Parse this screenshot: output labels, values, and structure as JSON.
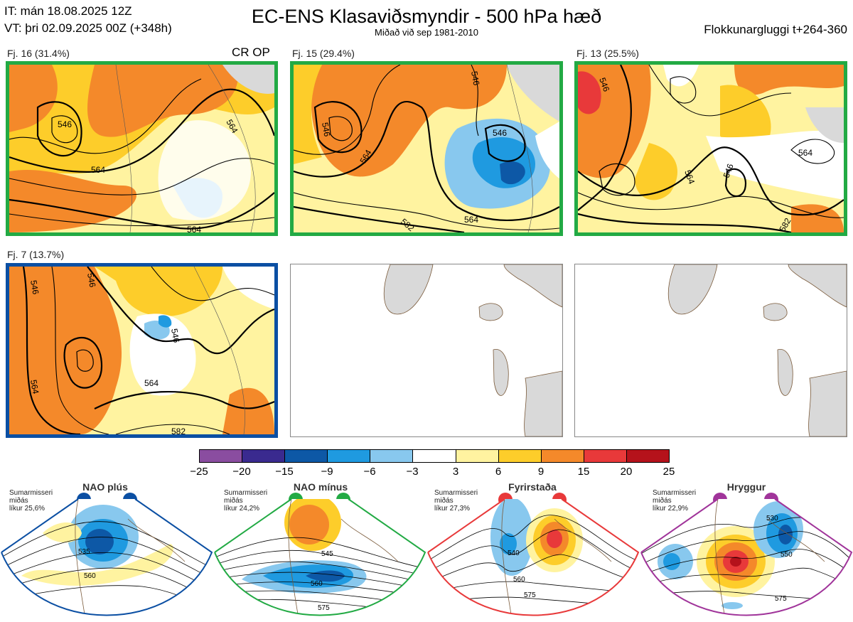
{
  "header": {
    "it_line": "IT: mán 18.08.2025 12Z",
    "vt_line": "VT: þri 02.09.2025 00Z  (+348h)",
    "title": "EC-ENS Klasaviðsmyndir - 500 hPa hæð",
    "subtitle": "Miðað við sep 1981-2010",
    "window": "Flokkunargluggi t+264-360"
  },
  "panels": [
    {
      "label": "Fj. 16 (31.4%)",
      "extra": "CR OP",
      "border": "#22aa44",
      "contours": [
        "546",
        "564",
        "564",
        "564"
      ]
    },
    {
      "label": "Fj. 15 (29.4%)",
      "border": "#22aa44",
      "contours": [
        "546",
        "546",
        "564",
        "546",
        "582",
        "564"
      ]
    },
    {
      "label": "Fj. 13 (25.5%)",
      "border": "#22aa44",
      "contours": [
        "546",
        "564",
        "546",
        "564",
        "582"
      ]
    },
    {
      "label": "Fj. 7 (13.7%)",
      "border": "#0b4fa3",
      "contours": [
        "546",
        "546",
        "546",
        "564",
        "564",
        "582"
      ]
    }
  ],
  "colorbar": {
    "ticks": [
      "−25",
      "−20",
      "−15",
      "−9",
      "−6",
      "−3",
      "3",
      "6",
      "9",
      "15",
      "20",
      "25"
    ],
    "colors": [
      "#8a4da0",
      "#3a2a8f",
      "#0d58a6",
      "#1f9ae0",
      "#88c8ee",
      "#ffffff",
      "#fff3a0",
      "#fdcd2a",
      "#f4892a",
      "#e8393a",
      "#b5121b"
    ]
  },
  "regimes": [
    {
      "name": "NAO plús",
      "season": "Sumarmisseri",
      "qual": "miðás",
      "prob": "líkur 25,6%",
      "color": "#0b4fa3",
      "contours": [
        "535",
        "560"
      ]
    },
    {
      "name": "NAO mínus",
      "season": "Sumarmisseri",
      "qual": "miðás",
      "prob": "líkur 24,2%",
      "color": "#22aa44",
      "contours": [
        "545",
        "560",
        "575"
      ]
    },
    {
      "name": "Fyrirstaða",
      "season": "Sumarmisseri",
      "qual": "miðás",
      "prob": "líkur 27,3%",
      "color": "#e8393a",
      "contours": [
        "540",
        "560",
        "575"
      ]
    },
    {
      "name": "Hryggur",
      "season": "Sumarmisseri",
      "qual": "miðás",
      "prob": "líkur 22,9%",
      "color": "#a0349a",
      "contours": [
        "530",
        "550",
        "575"
      ]
    }
  ]
}
